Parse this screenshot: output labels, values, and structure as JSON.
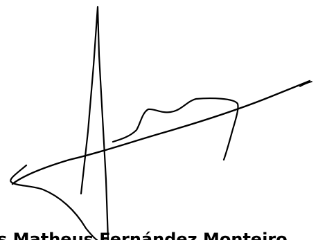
{
  "document": {
    "signer_name": "Matheus Fernández Monteiro",
    "signer_name_visible_prefix": "s"
  },
  "colors": {
    "background": "#ffffff",
    "ink": "#000000"
  }
}
